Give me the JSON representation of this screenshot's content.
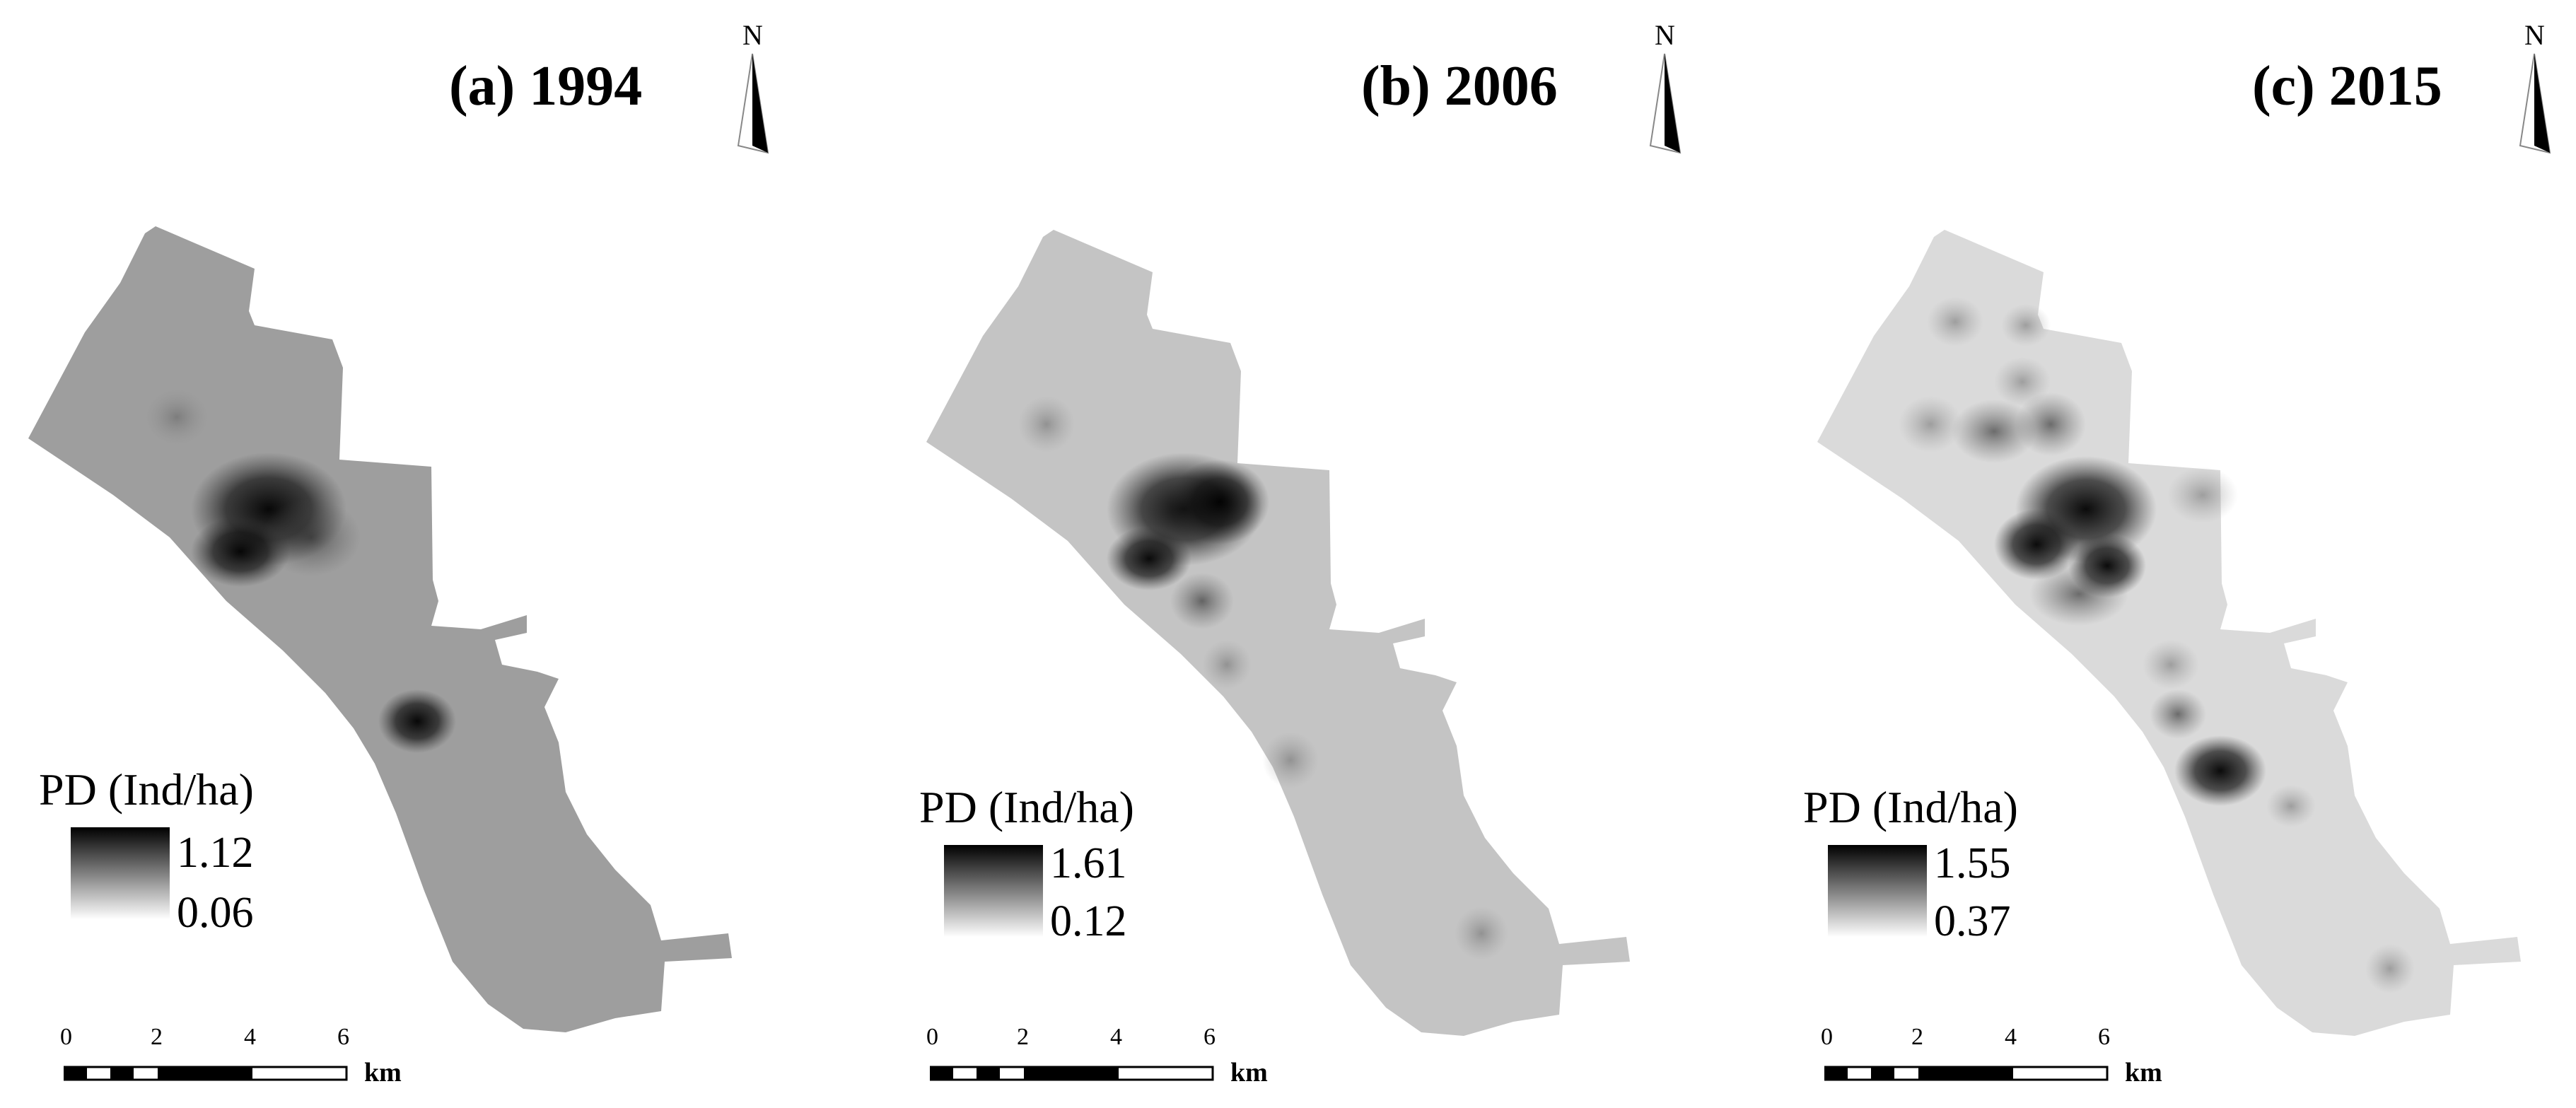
{
  "panels": [
    {
      "title": "(a) 1994",
      "north_label": "N",
      "background_color": "#9e9e9e",
      "legend": {
        "title": "PD (Ind/ha)",
        "max": "1.12",
        "min": "0.06"
      },
      "scalebar": {
        "ticks": [
          "0",
          "2",
          "4",
          "6"
        ],
        "unit": "km"
      }
    },
    {
      "title": "(b) 2006",
      "north_label": "N",
      "background_color": "#c4c4c4",
      "legend": {
        "title": "PD (Ind/ha)",
        "max": "1.61",
        "min": "0.12"
      },
      "scalebar": {
        "ticks": [
          "0",
          "2",
          "4",
          "6"
        ],
        "unit": "km"
      }
    },
    {
      "title": "(c) 2015",
      "north_label": "N",
      "background_color": "#dadada",
      "legend": {
        "title": "PD (Ind/ha)",
        "max": "1.55",
        "min": "0.37"
      },
      "scalebar": {
        "ticks": [
          "0",
          "2",
          "4",
          "6"
        ],
        "unit": "km"
      }
    }
  ]
}
